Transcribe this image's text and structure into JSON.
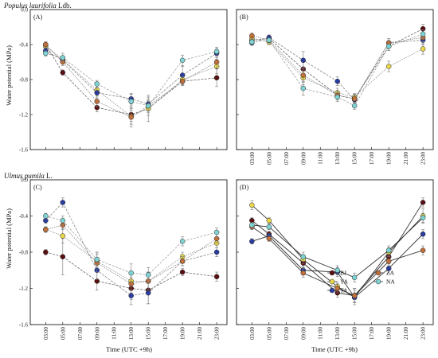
{
  "figure": {
    "y_axis_title": "Water potential (MPa)",
    "x_axis_title": "Time (UTC +9h)"
  },
  "legend": {
    "panel": 3,
    "columns": [
      [
        "BJ",
        "YA",
        "TA"
      ],
      [
        "ZA",
        "NA"
      ]
    ]
  },
  "chart_data": [
    {
      "type": "line",
      "panel_label": "(A)",
      "species_italic": "Populus laurifolia",
      "species_author": " Ldb.",
      "x_ticks": [
        "03:00",
        "05:00",
        "07:00",
        "09:00",
        "11:00",
        "13:00",
        "15:00",
        "17:00",
        "19:00",
        "21:00",
        "23:00"
      ],
      "y_ticks": [
        "0.0",
        "-0.4",
        "-0.8",
        "-1.2",
        "-1.6"
      ],
      "show_x_ticks": false,
      "show_y_ticks": true,
      "ylim": [
        -1.6,
        0.0
      ],
      "x": [
        3,
        5,
        9,
        13,
        15,
        19,
        23
      ],
      "series": [
        {
          "name": "BJ",
          "color": "#5a0f12",
          "line": "#555555",
          "values": [
            -0.4,
            -0.72,
            -1.12,
            -1.2,
            -1.13,
            -0.82,
            -0.78
          ],
          "err": [
            0.03,
            0.03,
            0.05,
            0.08,
            0.08,
            0.05,
            0.1
          ]
        },
        {
          "name": "YA",
          "color": "#e8d84a",
          "line": "#888888",
          "values": [
            -0.42,
            -0.57,
            -0.92,
            -1.22,
            -1.13,
            -0.8,
            -0.65
          ],
          "err": [
            0.03,
            0.04,
            0.06,
            0.12,
            0.15,
            0.06,
            0.08
          ]
        },
        {
          "name": "TA",
          "color": "#2a3da0",
          "line": "#777777",
          "values": [
            -0.47,
            -0.58,
            -0.95,
            -1.02,
            -1.08,
            -0.75,
            -0.5
          ],
          "err": [
            0.03,
            0.04,
            0.06,
            0.06,
            0.08,
            0.1,
            0.05
          ]
        },
        {
          "name": "ZA",
          "color": "#c0703a",
          "line": "#777777",
          "values": [
            -0.4,
            -0.6,
            -1.05,
            -1.23,
            -1.1,
            -0.82,
            -0.6
          ],
          "err": [
            0.03,
            0.04,
            0.06,
            0.08,
            0.08,
            0.05,
            0.07
          ]
        },
        {
          "name": "NA",
          "color": "#7fd3d3",
          "line": "#999999",
          "values": [
            -0.5,
            -0.55,
            -0.85,
            -1.05,
            -1.1,
            -0.58,
            -0.48
          ],
          "err": [
            0.03,
            0.05,
            0.04,
            0.08,
            0.06,
            0.06,
            0.05
          ]
        }
      ]
    },
    {
      "type": "line",
      "panel_label": "(B)",
      "species_italic": "",
      "species_author": "",
      "x_ticks": [
        "03:00",
        "05:00",
        "07:00",
        "09:00",
        "11:00",
        "13:00",
        "15:00",
        "17:00",
        "19:00",
        "21:00",
        "23:00"
      ],
      "y_ticks": [
        "0.0",
        "-0.4",
        "-0.8",
        "-1.2",
        "-1.6"
      ],
      "show_x_ticks": true,
      "show_y_ticks": false,
      "ylim": [
        -1.6,
        0.0
      ],
      "x": [
        3,
        5,
        9,
        13,
        15,
        19,
        23
      ],
      "series": [
        {
          "name": "BJ",
          "color": "#5a0f12",
          "line": "#555555",
          "values": [
            -0.35,
            -0.33,
            -0.68,
            -0.98,
            -1.02,
            -0.42,
            -0.22
          ],
          "err": [
            0.03,
            0.03,
            0.08,
            0.04,
            0.04,
            0.05,
            0.05
          ]
        },
        {
          "name": "YA",
          "color": "#e8d84a",
          "line": "#888888",
          "values": [
            -0.33,
            -0.37,
            -0.78,
            -0.95,
            -1.0,
            -0.65,
            -0.45
          ],
          "err": [
            0.03,
            0.03,
            0.08,
            0.05,
            0.04,
            0.06,
            0.06
          ]
        },
        {
          "name": "TA",
          "color": "#2a3da0",
          "line": "#777777",
          "values": [
            -0.38,
            -0.32,
            -0.58,
            -0.82,
            -1.03,
            -0.38,
            -0.35
          ],
          "err": [
            0.03,
            0.03,
            0.1,
            0.05,
            0.05,
            0.05,
            0.05
          ]
        },
        {
          "name": "ZA",
          "color": "#c0703a",
          "line": "#777777",
          "values": [
            -0.3,
            -0.35,
            -0.75,
            -0.98,
            -1.02,
            -0.38,
            -0.32
          ],
          "err": [
            0.03,
            0.03,
            0.08,
            0.05,
            0.05,
            0.05,
            0.05
          ]
        },
        {
          "name": "NA",
          "color": "#7fd3d3",
          "line": "#999999",
          "values": [
            -0.37,
            -0.35,
            -0.9,
            -1.0,
            -1.1,
            -0.42,
            -0.28
          ],
          "err": [
            0.03,
            0.03,
            0.08,
            0.05,
            0.04,
            0.05,
            0.05
          ]
        }
      ]
    },
    {
      "type": "line",
      "panel_label": "(C)",
      "species_italic": "Ulmus pumila",
      "species_author": " L.",
      "x_ticks": [
        "03:00",
        "05:00",
        "07:00",
        "09:00",
        "11:00",
        "13:00",
        "15:00",
        "17:00",
        "19:00",
        "21:00",
        "23:00"
      ],
      "y_ticks": [
        "0.0",
        "-0.4",
        "-0.8",
        "-1.2",
        "-1.6"
      ],
      "show_x_ticks": true,
      "show_y_ticks": true,
      "ylim": [
        -1.6,
        0.0
      ],
      "x": [
        3,
        5,
        9,
        13,
        15,
        19,
        23
      ],
      "series": [
        {
          "name": "BJ",
          "color": "#5a0f12",
          "line": "#555555",
          "values": [
            -0.8,
            -0.85,
            -1.12,
            -1.2,
            -1.22,
            -1.02,
            -1.07
          ],
          "err": [
            0.03,
            0.2,
            0.1,
            0.12,
            0.15,
            0.04,
            0.05
          ]
        },
        {
          "name": "YA",
          "color": "#e8d84a",
          "line": "#888888",
          "values": [
            -0.55,
            -0.62,
            -0.9,
            -1.12,
            -1.12,
            -0.85,
            -0.7
          ],
          "err": [
            0.03,
            0.08,
            0.1,
            0.1,
            0.1,
            0.05,
            0.05
          ]
        },
        {
          "name": "TA",
          "color": "#2a3da0",
          "line": "#777777",
          "values": [
            -0.45,
            -0.25,
            -1.0,
            -1.28,
            -1.25,
            -0.9,
            -0.8
          ],
          "err": [
            0.03,
            0.05,
            0.1,
            0.1,
            0.12,
            0.05,
            0.05
          ]
        },
        {
          "name": "ZA",
          "color": "#c0703a",
          "line": "#777777",
          "values": [
            -0.55,
            -0.5,
            -0.92,
            -1.15,
            -1.12,
            -0.9,
            -0.65
          ],
          "err": [
            0.03,
            0.05,
            0.1,
            0.1,
            0.1,
            0.05,
            0.05
          ]
        },
        {
          "name": "NA",
          "color": "#7fd3d3",
          "line": "#999999",
          "values": [
            -0.4,
            -0.45,
            -0.88,
            -1.03,
            -1.05,
            -0.68,
            -0.58
          ],
          "err": [
            0.03,
            0.05,
            0.08,
            0.1,
            0.08,
            0.05,
            0.05
          ]
        }
      ]
    },
    {
      "type": "line",
      "panel_label": "(D)",
      "species_italic": "",
      "species_author": "",
      "x_ticks": [
        "03:00",
        "05:00",
        "07:00",
        "09:00",
        "11:00",
        "13:00",
        "15:00",
        "17:00",
        "19:00",
        "21:00",
        "23:00"
      ],
      "y_ticks": [
        "0.0",
        "-0.4",
        "-0.8",
        "-1.2",
        "-1.6"
      ],
      "show_x_ticks": true,
      "show_y_ticks": false,
      "ylim": [
        -1.6,
        0.0
      ],
      "x": [
        3,
        5,
        9,
        13,
        15,
        19,
        23
      ],
      "series": [
        {
          "name": "BJ",
          "color": "#5a0f12",
          "line": "#333333",
          "values": [
            -0.45,
            -0.6,
            -0.92,
            -1.25,
            -1.28,
            -0.85,
            -0.25
          ],
          "err": [
            0.03,
            0.03,
            0.05,
            0.05,
            0.08,
            0.05,
            0.05
          ]
        },
        {
          "name": "YA",
          "color": "#e8d84a",
          "line": "#333333",
          "values": [
            -0.28,
            -0.45,
            -0.88,
            -1.18,
            -1.3,
            -0.8,
            -0.4
          ],
          "err": [
            0.05,
            0.03,
            0.05,
            0.05,
            0.08,
            0.05,
            0.08
          ]
        },
        {
          "name": "TA",
          "color": "#2a3da0",
          "line": "#333333",
          "values": [
            -0.68,
            -0.62,
            -1.0,
            -1.02,
            -1.3,
            -0.98,
            -0.6
          ],
          "err": [
            0.03,
            0.03,
            0.05,
            0.05,
            0.05,
            0.05,
            0.05
          ]
        },
        {
          "name": "ZA",
          "color": "#c0703a",
          "line": "#333333",
          "values": [
            -0.52,
            -0.65,
            -1.03,
            -1.2,
            -1.28,
            -0.9,
            -0.78
          ],
          "err": [
            0.03,
            0.03,
            0.05,
            0.05,
            0.08,
            0.05,
            0.05
          ]
        },
        {
          "name": "NA",
          "color": "#7fd3d3",
          "line": "#333333",
          "values": [
            -0.5,
            -0.52,
            -0.85,
            -1.0,
            -1.08,
            -0.78,
            -0.42
          ],
          "err": [
            0.03,
            0.03,
            0.05,
            0.05,
            0.05,
            0.05,
            0.05
          ]
        }
      ]
    }
  ]
}
